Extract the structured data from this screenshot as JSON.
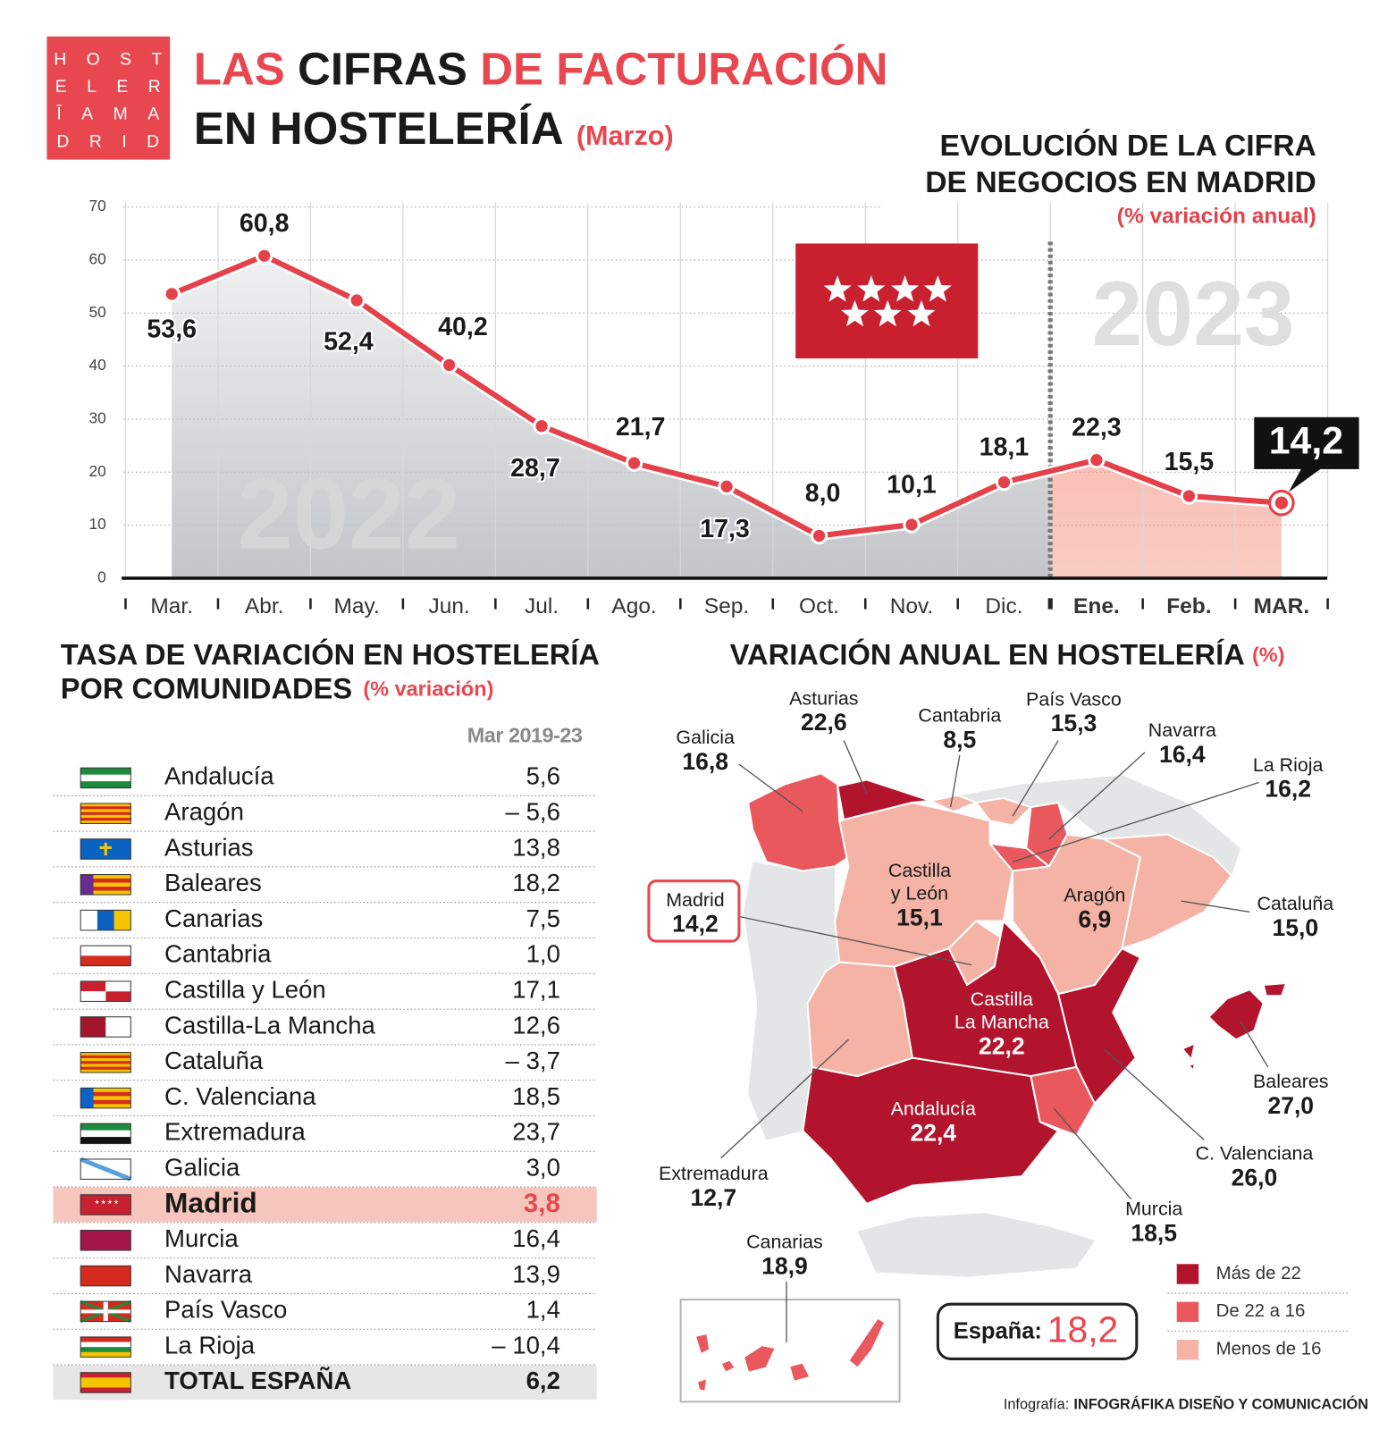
{
  "logo": {
    "rows": [
      "HOST",
      "ELER",
      "ĪAMA",
      "DRID"
    ],
    "color": "#e8474f"
  },
  "header": {
    "line1": [
      {
        "text": "LAS",
        "color": "#e8474f"
      },
      {
        "text": "CIFRAS",
        "color": "#1a1a1a"
      },
      {
        "text": "DE FACTURACIÓN",
        "color": "#e8474f"
      }
    ],
    "line2": [
      {
        "text": "EN HOSTELERÍA",
        "color": "#1a1a1a"
      },
      {
        "text": "(Marzo)",
        "color": "#e8474f"
      }
    ]
  },
  "chart_data": {
    "type": "line",
    "title": [
      "EVOLUCIÓN DE LA CIFRA",
      "DE NEGOCIOS EN MADRID"
    ],
    "subtitle": "(% variación anual)",
    "categories": [
      "Mar.",
      "Abr.",
      "May.",
      "Jun.",
      "Jul.",
      "Ago.",
      "Sep.",
      "Oct.",
      "Nov.",
      "Dic.",
      "Ene.",
      "Feb.",
      "MAR."
    ],
    "values": [
      53.6,
      60.8,
      52.4,
      40.2,
      28.7,
      21.7,
      17.3,
      8.0,
      10.1,
      18.1,
      22.3,
      15.5,
      14.2
    ],
    "value_labels": [
      "53,6",
      "60,8",
      "52,4",
      "40,2",
      "28,7",
      "21,7",
      "17,3",
      "8,0",
      "10,1",
      "18,1",
      "22,3",
      "15,5",
      "14,2"
    ],
    "color": "#e4414a",
    "ylim": [
      0,
      70
    ],
    "yticks": [
      0,
      10,
      20,
      30,
      40,
      50,
      60,
      70
    ],
    "grid": true,
    "periods": [
      {
        "label": "2022",
        "categories": 10,
        "color": "#c3c5c8"
      },
      {
        "label": "2023",
        "categories": 3,
        "color": "#f4a394"
      }
    ]
  },
  "table": {
    "title": [
      "TASA DE VARIACIÓN EN HOSTELERÍA",
      "POR COMUNIDADES"
    ],
    "subtitle": "(% variación)",
    "column": "Mar 2019-23",
    "rows": [
      [
        "Andalucía",
        "5,6"
      ],
      [
        "Aragón",
        "– 5,6"
      ],
      [
        "Asturias",
        "13,8"
      ],
      [
        "Baleares",
        "18,2"
      ],
      [
        "Canarias",
        "7,5"
      ],
      [
        "Cantabria",
        "1,0"
      ],
      [
        "Castilla y León",
        "17,1"
      ],
      [
        "Castilla-La Mancha",
        "12,6"
      ],
      [
        "Cataluña",
        "– 3,7"
      ],
      [
        "C. Valenciana",
        "18,5"
      ],
      [
        "Extremadura",
        "23,7"
      ],
      [
        "Galicia",
        "3,0"
      ],
      [
        "Madrid",
        "3,8"
      ],
      [
        "Murcia",
        "16,4"
      ],
      [
        "Navarra",
        "13,9"
      ],
      [
        "País Vasco",
        "1,4"
      ],
      [
        "La Rioja",
        "– 10,4"
      ]
    ],
    "highlight_row": 12,
    "total": [
      "TOTAL ESPAÑA",
      "6,2"
    ]
  },
  "map": {
    "title": "VARIACIÓN ANUAL EN HOSTELERÍA",
    "unit": "(%)",
    "regions": [
      {
        "name": "Galicia",
        "value": "16,8",
        "color": "#e9585c"
      },
      {
        "name": "Asturias",
        "value": "22,6",
        "color": "#b3142d"
      },
      {
        "name": "Cantabria",
        "value": "8,5",
        "color": "#f5b3a6"
      },
      {
        "name": "País Vasco",
        "value": "15,3",
        "color": "#f5b3a6"
      },
      {
        "name": "Navarra",
        "value": "16,4",
        "color": "#e9585c"
      },
      {
        "name": "La Rioja",
        "value": "16,2",
        "color": "#e9585c"
      },
      {
        "name": [
          "Castilla",
          "y León"
        ],
        "value": "15,1",
        "color": "#f5b3a6"
      },
      {
        "name": "Aragón",
        "value": "6,9",
        "color": "#f5b3a6"
      },
      {
        "name": "Cataluña",
        "value": "15,0",
        "color": "#f5b3a6"
      },
      {
        "name": "Madrid",
        "value": "14,2",
        "color": "#f5b3a6"
      },
      {
        "name": [
          "Castilla",
          "La Mancha"
        ],
        "value": "22,2",
        "color": "#b3142d"
      },
      {
        "name": "Andalucía",
        "value": "22,4",
        "color": "#b3142d"
      },
      {
        "name": "Extremadura",
        "value": "12,7",
        "color": "#f5b3a6"
      },
      {
        "name": "C. Valenciana",
        "value": "26,0",
        "color": "#b3142d"
      },
      {
        "name": "Murcia",
        "value": "18,5",
        "color": "#e9585c"
      },
      {
        "name": "Baleares",
        "value": "27,0",
        "color": "#b3142d"
      },
      {
        "name": "Canarias",
        "value": "18,9",
        "color": "#e9585c"
      }
    ],
    "legend": [
      {
        "label": "Más de 22",
        "color": "#b3142d"
      },
      {
        "label": "De 22 a 16",
        "color": "#e9585c"
      },
      {
        "label": "Menos de 16",
        "color": "#f5b3a6"
      }
    ],
    "total": {
      "label": "España:",
      "value": "18,2"
    }
  },
  "footer": {
    "label": "Infografía:",
    "credit": "INFOGRÁFIKA DISEÑO Y COMUNICACIÓN"
  }
}
